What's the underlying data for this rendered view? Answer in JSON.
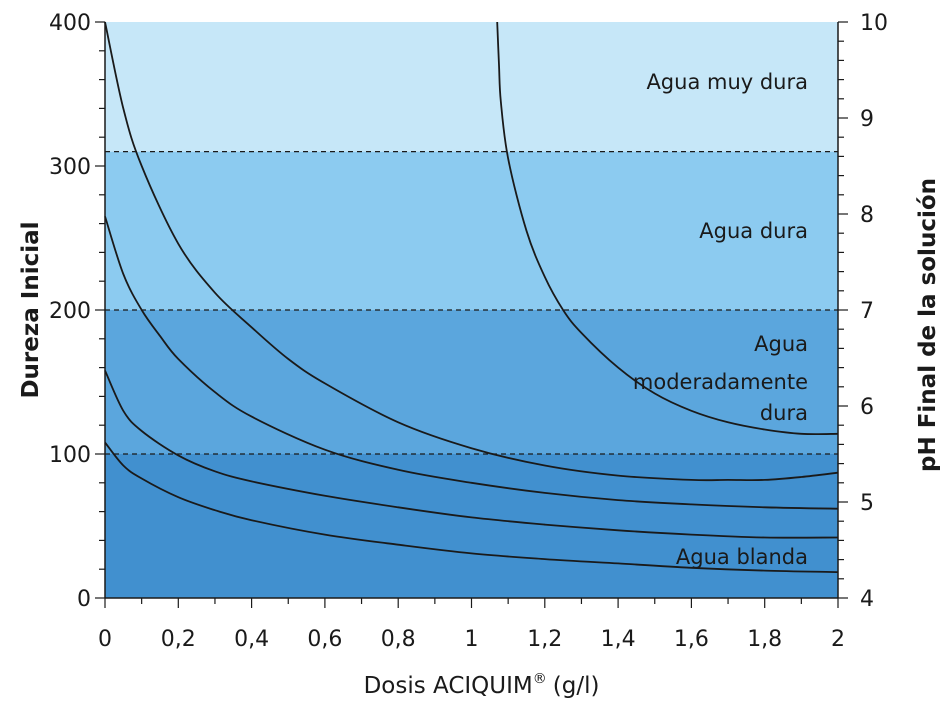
{
  "chart_data": {
    "type": "line",
    "title": "",
    "xlabel": "Dosis ACIQUIM",
    "xlabel_superscript": "®",
    "xlabel_unit": "(g/l)",
    "ylabel_left": "Dureza Inicial",
    "ylabel_right": "pH Final de la solución",
    "xlim": [
      0,
      2
    ],
    "ylim_left": [
      0,
      400
    ],
    "ylim_right": [
      4,
      10
    ],
    "x_ticks": [
      "0",
      "0,2",
      "0,4",
      "0,6",
      "0,8",
      "1",
      "1,2",
      "1,4",
      "1,6",
      "1,8",
      "2"
    ],
    "y_left_ticks": [
      "0",
      "100",
      "200",
      "300",
      "400"
    ],
    "y_right_ticks": [
      "4",
      "5",
      "6",
      "7",
      "8",
      "9",
      "10"
    ],
    "grid": false,
    "zones": [
      {
        "name": "Agua blanda",
        "label_lines": [
          "Agua blanda"
        ],
        "from": 0,
        "to": 100,
        "color": "#4190cf"
      },
      {
        "name": "Agua moderadamente dura",
        "label_lines": [
          "Agua",
          "moderadamente",
          "dura"
        ],
        "from": 100,
        "to": 200,
        "color": "#5ba6dd"
      },
      {
        "name": "Agua dura",
        "label_lines": [
          "Agua dura"
        ],
        "from": 200,
        "to": 310,
        "color": "#8ccbf0"
      },
      {
        "name": "Agua muy dura",
        "label_lines": [
          "Agua muy dura"
        ],
        "from": 310,
        "to": 400,
        "color": "#c6e7f8"
      }
    ],
    "dashed_lines_y": [
      100,
      200,
      310
    ],
    "series": [
      {
        "x": [
          0,
          0.05,
          0.1,
          0.2,
          0.3,
          0.4,
          0.6,
          0.8,
          1.0,
          1.2,
          1.4,
          1.6,
          1.8,
          2.0
        ],
        "y": [
          108,
          92,
          83,
          70,
          61,
          54,
          44,
          37,
          31,
          27,
          24,
          21,
          19,
          18
        ]
      },
      {
        "x": [
          0,
          0.05,
          0.1,
          0.2,
          0.3,
          0.4,
          0.6,
          0.8,
          1.0,
          1.2,
          1.4,
          1.6,
          1.8,
          2.0
        ],
        "y": [
          158,
          130,
          116,
          99,
          88,
          81,
          71,
          63,
          56,
          51,
          47,
          44,
          42,
          42
        ]
      },
      {
        "x": [
          0,
          0.05,
          0.1,
          0.15,
          0.2,
          0.3,
          0.4,
          0.6,
          0.8,
          1.0,
          1.2,
          1.4,
          1.6,
          1.8,
          2.0
        ],
        "y": [
          265,
          225,
          200,
          182,
          166,
          143,
          126,
          103,
          89,
          80,
          73,
          68,
          65,
          63,
          62
        ]
      },
      {
        "x": [
          0,
          0.05,
          0.1,
          0.2,
          0.3,
          0.4,
          0.5,
          0.6,
          0.8,
          1.0,
          1.2,
          1.4,
          1.6,
          1.7,
          1.8,
          1.9,
          2.0
        ],
        "y": [
          400,
          340,
          300,
          246,
          212,
          188,
          166,
          149,
          122,
          104,
          92,
          85,
          82,
          82,
          82,
          84,
          87
        ]
      },
      {
        "x": [
          1.07,
          1.075,
          1.08,
          1.1,
          1.15,
          1.2,
          1.25,
          1.3,
          1.4,
          1.5,
          1.6,
          1.7,
          1.8,
          1.9,
          2.0
        ],
        "y": [
          400,
          370,
          345,
          305,
          255,
          223,
          200,
          184,
          160,
          142,
          130,
          122,
          117,
          114,
          114
        ]
      }
    ]
  }
}
